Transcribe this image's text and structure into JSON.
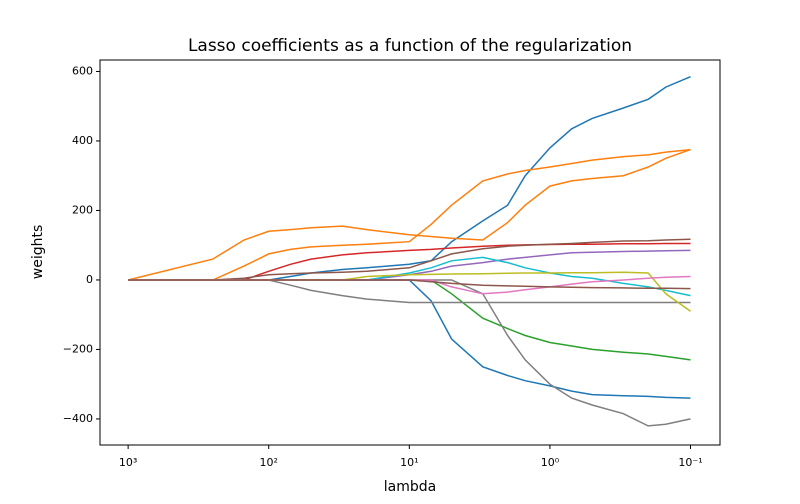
{
  "chart_data": {
    "type": "line",
    "title": "Lasso coefficients as a function of the regularization",
    "x_label": "lambda",
    "y_label": "weights",
    "xscale": "log",
    "xlim": [
      1585,
      0.0617
    ],
    "ylim": [
      -475,
      633
    ],
    "xticks": [
      {
        "value": 1000,
        "label": "10³"
      },
      {
        "value": 100,
        "label": "10²"
      },
      {
        "value": 10,
        "label": "10¹"
      },
      {
        "value": 1,
        "label": "10⁰"
      },
      {
        "value": 0.1,
        "label": "10⁻¹"
      }
    ],
    "yticks": [
      {
        "value": -400,
        "label": "−400"
      },
      {
        "value": -200,
        "label": "−200"
      },
      0,
      200,
      400,
      600
    ],
    "x": [
      1000,
      250,
      150,
      100,
      70,
      50,
      30,
      20,
      10,
      7,
      5,
      3,
      2,
      1.5,
      1,
      0.7,
      0.5,
      0.3,
      0.2,
      0.15,
      0.1
    ],
    "series": [
      {
        "color": "#1f77b4",
        "values": [
          0,
          0,
          0,
          0,
          10,
          20,
          30,
          35,
          45,
          55,
          110,
          170,
          215,
          300,
          380,
          435,
          465,
          495,
          520,
          555,
          585
        ]
      },
      {
        "color": "#ff7f0e",
        "values": [
          0,
          60,
          115,
          140,
          145,
          150,
          155,
          145,
          130,
          125,
          120,
          115,
          165,
          215,
          270,
          285,
          292,
          300,
          325,
          350,
          375
        ]
      },
      {
        "color": "#ff7f0e",
        "values": [
          0,
          0,
          40,
          75,
          88,
          95,
          100,
          103,
          110,
          160,
          215,
          285,
          305,
          315,
          325,
          335,
          345,
          355,
          360,
          368,
          375
        ]
      },
      {
        "color": "#d62728",
        "values": [
          0,
          0,
          0,
          25,
          45,
          60,
          72,
          78,
          85,
          88,
          92,
          97,
          100,
          101,
          102,
          103,
          103,
          104,
          104,
          105,
          105
        ]
      },
      {
        "color": "#8c564b",
        "values": [
          0,
          0,
          5,
          15,
          18,
          20,
          22,
          25,
          35,
          55,
          75,
          90,
          97,
          100,
          103,
          105,
          108,
          112,
          113,
          115,
          117
        ]
      },
      {
        "color": "#9467bd",
        "values": [
          0,
          0,
          0,
          0,
          0,
          0,
          0,
          0,
          15,
          25,
          40,
          50,
          60,
          65,
          72,
          78,
          80,
          82,
          83,
          84,
          85
        ]
      },
      {
        "color": "#17becf",
        "values": [
          0,
          0,
          0,
          0,
          0,
          0,
          0,
          0,
          20,
          35,
          55,
          65,
          50,
          35,
          20,
          10,
          5,
          -10,
          -20,
          -30,
          -45
        ]
      },
      {
        "color": "#2ca02c",
        "values": [
          0,
          0,
          0,
          0,
          0,
          0,
          0,
          0,
          0,
          0,
          -40,
          -110,
          -140,
          -160,
          -180,
          -190,
          -200,
          -208,
          -213,
          -220,
          -230
        ]
      },
      {
        "color": "#1f77b4",
        "values": [
          0,
          0,
          0,
          0,
          0,
          0,
          0,
          0,
          0,
          -60,
          -170,
          -250,
          -275,
          -290,
          -305,
          -320,
          -330,
          -333,
          -335,
          -338,
          -340
        ]
      },
      {
        "color": "#7f7f7f",
        "values": [
          0,
          0,
          0,
          0,
          -15,
          -30,
          -45,
          -55,
          -65,
          -65,
          -65,
          -65,
          -65,
          -65,
          -65,
          -65,
          -65,
          -65,
          -65,
          -65,
          -65
        ]
      },
      {
        "color": "#7f7f7f",
        "values": [
          0,
          0,
          0,
          0,
          0,
          0,
          0,
          0,
          0,
          0,
          0,
          -40,
          -160,
          -230,
          -300,
          -340,
          -360,
          -385,
          -420,
          -415,
          -400
        ]
      },
      {
        "color": "#bcbd22",
        "values": [
          0,
          0,
          0,
          0,
          0,
          0,
          0,
          10,
          15,
          16,
          17,
          18,
          19,
          20,
          20,
          21,
          21,
          22,
          20,
          -40,
          -90
        ]
      },
      {
        "color": "#e377c2",
        "values": [
          0,
          0,
          0,
          0,
          0,
          0,
          0,
          0,
          0,
          0,
          -20,
          -40,
          -35,
          -28,
          -20,
          -12,
          -5,
          0,
          5,
          8,
          10
        ]
      },
      {
        "color": "#8c564b",
        "values": [
          0,
          0,
          0,
          0,
          0,
          0,
          0,
          0,
          0,
          -5,
          -10,
          -15,
          -17,
          -18,
          -20,
          -21,
          -22,
          -23,
          -24,
          -24,
          -25
        ]
      }
    ]
  }
}
